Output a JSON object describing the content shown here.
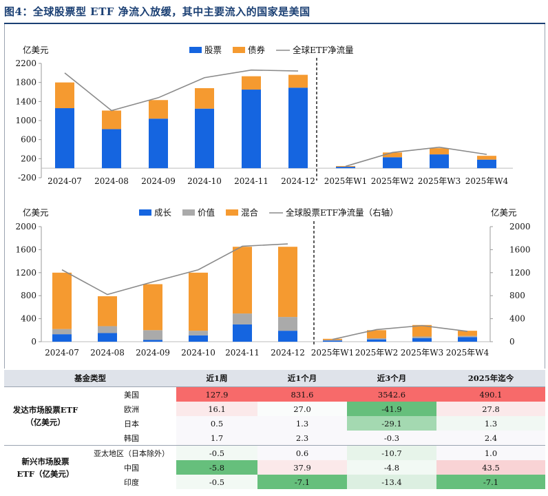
{
  "figure_title": "图4：全球股票型 ETF 净流入放缓，其中主要流入的国家是美国",
  "chart_data": [
    {
      "type": "bar",
      "stacked": true,
      "ylabel": "亿美元",
      "ylim": [
        -200,
        2200
      ],
      "yticks": [
        -200,
        200,
        600,
        1000,
        1400,
        1800,
        2200
      ],
      "ytick_labels": [
        "-200",
        "200",
        "600",
        "1000",
        "1400",
        "1800",
        "2200"
      ],
      "categories": [
        "2024-07",
        "2024-08",
        "2024-09",
        "2024-10",
        "2024-11",
        "2024-12",
        "2025年W1",
        "2025年W2",
        "2025年W3",
        "2025年W4"
      ],
      "series": [
        {
          "name": "股票",
          "color": "#1565e0",
          "values": [
            1260,
            820,
            1040,
            1250,
            1650,
            1690,
            30,
            230,
            290,
            180
          ]
        },
        {
          "name": "债券",
          "color": "#f59a30",
          "values": [
            540,
            390,
            390,
            430,
            280,
            270,
            15,
            100,
            130,
            80
          ]
        },
        {
          "name": "全球ETF净流量",
          "kind": "line",
          "color": "#8a8a8a",
          "values": [
            2000,
            1210,
            1480,
            1900,
            2060,
            2040,
            40,
            330,
            440,
            290
          ]
        }
      ],
      "divider_after_category": 6,
      "legend": "top-center",
      "grid": false
    },
    {
      "type": "bar",
      "stacked": true,
      "ylabel": "亿美元",
      "ylabel_right": "亿美元",
      "ylim": [
        0,
        2000
      ],
      "yticks": [
        0,
        400,
        800,
        1200,
        1600,
        2000
      ],
      "ytick_labels": [
        "0",
        "400",
        "800",
        "1200",
        "1600",
        "2000"
      ],
      "categories": [
        "2024-07",
        "2024-08",
        "2024-09",
        "2024-10",
        "2024-11",
        "2024-12",
        "2025年W1",
        "2025年W2",
        "2025年W3",
        "2025年W4"
      ],
      "series": [
        {
          "name": "成长",
          "color": "#1565e0",
          "values": [
            130,
            150,
            30,
            110,
            300,
            190,
            20,
            40,
            60,
            80
          ]
        },
        {
          "name": "价值",
          "color": "#aaaaaa",
          "values": [
            90,
            120,
            170,
            80,
            190,
            240,
            10,
            20,
            30,
            20
          ]
        },
        {
          "name": "混合",
          "color": "#f59a30",
          "values": [
            980,
            520,
            800,
            1010,
            1160,
            1220,
            20,
            140,
            200,
            90
          ]
        },
        {
          "name": "全球股票ETF净流量（右轴）",
          "kind": "line",
          "axis": "right",
          "color": "#8a8a8a",
          "values": [
            1250,
            820,
            1040,
            1250,
            1660,
            1700,
            40,
            210,
            280,
            180
          ]
        }
      ],
      "divider_after_category": 6,
      "legend": "top-center",
      "grid": false
    },
    {
      "type": "table",
      "columns": [
        "基金类型",
        "",
        "近1周",
        "近1个月",
        "近3个月",
        "2025年迄今"
      ],
      "groups": [
        {
          "label_line1": "发达市场股票ETF",
          "label_line2": "（亿美元）",
          "rows": [
            {
              "name": "美国",
              "values": [
                "127.9",
                "831.6",
                "3542.6",
                "490.1"
              ],
              "colors": [
                "#f76a6a",
                "#f76a6a",
                "#f76a6a",
                "#f76a6a"
              ]
            },
            {
              "name": "欧洲",
              "values": [
                "16.1",
                "27.0",
                "-41.9",
                "27.8"
              ],
              "colors": [
                "#fbe9ea",
                "#fafcfb",
                "#66bf7c",
                "#fbe9ea"
              ]
            },
            {
              "name": "日本",
              "values": [
                "0.5",
                "1.3",
                "-29.1",
                "1.3"
              ],
              "colors": [
                "#f9f8fb",
                "#f9f8fb",
                "#a4d9b1",
                "#f1f8f3"
              ]
            },
            {
              "name": "韩国",
              "values": [
                "1.7",
                "2.3",
                "-0.3",
                "2.4"
              ],
              "colors": [
                "#f9f8fb",
                "#f9f8fb",
                "#f9f8fb",
                "#f9f8fb"
              ]
            }
          ]
        },
        {
          "label_line1": "新兴市场股票",
          "label_line2": "ETF（亿美元）",
          "rows": [
            {
              "name": "亚太地区（日本除外）",
              "values": [
                "-0.5",
                "0.6",
                "-10.7",
                "1.0"
              ],
              "colors": [
                "#f2f9f4",
                "#f9f8fb",
                "#e7f4ea",
                "#f9f8fb"
              ]
            },
            {
              "name": "中国",
              "values": [
                "-5.8",
                "37.9",
                "-4.8",
                "43.5"
              ],
              "colors": [
                "#66bf7c",
                "#fbe9ea",
                "#f2f9f4",
                "#f9d3d5"
              ]
            },
            {
              "name": "印度",
              "values": [
                "-0.5",
                "-7.1",
                "-13.4",
                "-7.1"
              ],
              "colors": [
                "#f2f9f4",
                "#66bf7c",
                "#dcefe1",
                "#66bf7c"
              ]
            }
          ]
        }
      ]
    }
  ]
}
